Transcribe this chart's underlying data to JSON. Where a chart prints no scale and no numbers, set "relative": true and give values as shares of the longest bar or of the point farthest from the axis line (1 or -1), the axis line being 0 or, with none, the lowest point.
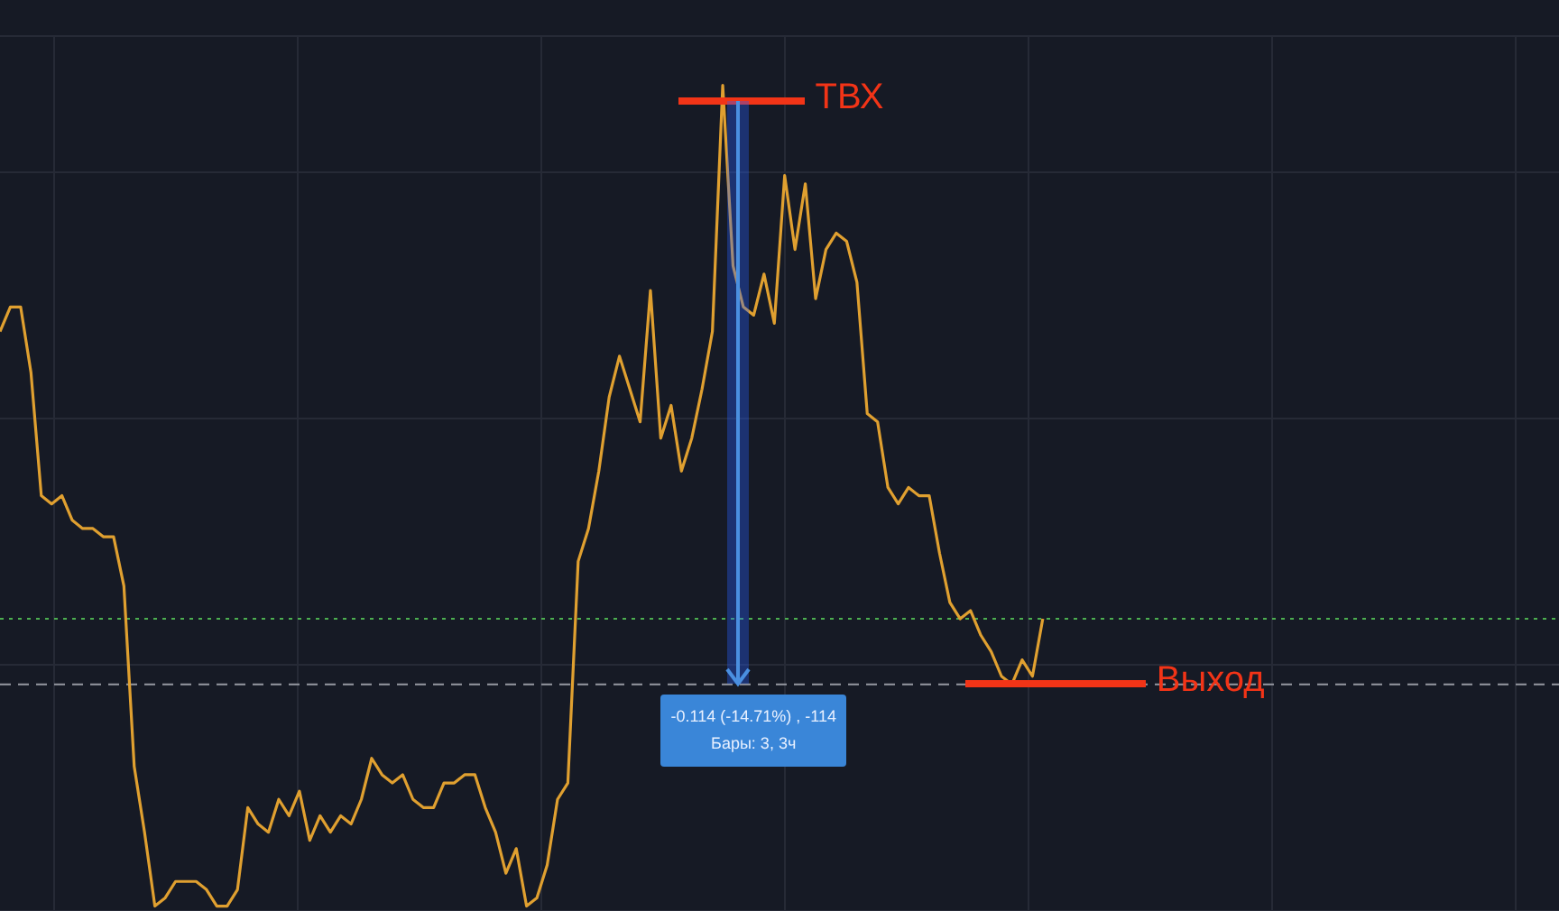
{
  "chart_data": {
    "type": "line",
    "relative": true,
    "grid": true,
    "marker": "none",
    "line_style": "solid",
    "categories": [
      null,
      null,
      null,
      null,
      null,
      null,
      null,
      null,
      null,
      null,
      null,
      null,
      null,
      null,
      null,
      null,
      null,
      null,
      null,
      null,
      null,
      null,
      null,
      null,
      null,
      null,
      null,
      null,
      null,
      null,
      null,
      null,
      null,
      null,
      null,
      null,
      null,
      null,
      null,
      null,
      null,
      null,
      null,
      null,
      null,
      null,
      null,
      null,
      null,
      null,
      null,
      null,
      null,
      null,
      null,
      null,
      null,
      null,
      null,
      null,
      null,
      null,
      null,
      null,
      null,
      null,
      null,
      null,
      null,
      null,
      null,
      null,
      null,
      null,
      null,
      null,
      null,
      null,
      null,
      null,
      null,
      null,
      null,
      null,
      null,
      null,
      null,
      null,
      null,
      null,
      null,
      null,
      null,
      null,
      null,
      null,
      null,
      null,
      null,
      null,
      null,
      null,
      null,
      null,
      null,
      null,
      null,
      null,
      null,
      null,
      null,
      null,
      null,
      null,
      null,
      null,
      null,
      null,
      null,
      null,
      null,
      null,
      null,
      null,
      null,
      null,
      null,
      null,
      null,
      null,
      null,
      null,
      null,
      null,
      null,
      null,
      null,
      null,
      null,
      null,
      null,
      null,
      null,
      null,
      null,
      null,
      null,
      null,
      null,
      null,
      null,
      null
    ],
    "series": [
      {
        "color": "#e0a030",
        "values": [
          0.7,
          0.73,
          0.73,
          0.65,
          0.5,
          0.49,
          0.5,
          0.47,
          0.46,
          0.46,
          0.45,
          0.45,
          0.39,
          0.17,
          0.09,
          0,
          0.01,
          0.03,
          0.03,
          0.03,
          0.02,
          0,
          0,
          0.02,
          0.12,
          0.1,
          0.09,
          0.13,
          0.11,
          0.14,
          0.08,
          0.11,
          0.09,
          0.11,
          0.1,
          0.13,
          0.18,
          0.16,
          0.15,
          0.16,
          0.13,
          0.12,
          0.12,
          0.15,
          0.15,
          0.16,
          0.16,
          0.12,
          0.09,
          0.04,
          0.07,
          0,
          0.01,
          0.05,
          0.13,
          0.15,
          0.42,
          0.46,
          0.53,
          0.62,
          0.67,
          0.63,
          0.59,
          0.75,
          0.57,
          0.61,
          0.53,
          0.57,
          0.63,
          0.7,
          1,
          0.78,
          0.73,
          0.72,
          0.77,
          0.71,
          0.89,
          0.8,
          0.88,
          0.74,
          0.8,
          0.82,
          0.81,
          0.76,
          0.6,
          0.59,
          0.51,
          0.49,
          0.51,
          0.5,
          0.5,
          0.43,
          0.37,
          0.35,
          0.36,
          0.33,
          0.31,
          0.28,
          0.27,
          0.3,
          0.28,
          0.35,
          null,
          null,
          null,
          null,
          null,
          null,
          null,
          null,
          null,
          null,
          null,
          null,
          null,
          null,
          null,
          null,
          null,
          null,
          null,
          null,
          null,
          null,
          null,
          null,
          null,
          null,
          null,
          null,
          null,
          null,
          null,
          null,
          null,
          null,
          null,
          null,
          null,
          null,
          null,
          null,
          null,
          null,
          null,
          null,
          null,
          null,
          null,
          null,
          null,
          null
        ]
      }
    ],
    "ref_lines": [
      {
        "axis": "y",
        "value": 0.35,
        "color": "#4caf50",
        "line_style": "dotted"
      },
      {
        "axis": "y",
        "value": 0.27,
        "color": "#9598a1",
        "line_style": "dashed"
      },
      {
        "axis": "y",
        "value": 0.98,
        "label": "ТВХ",
        "color": "#f23417"
      },
      {
        "axis": "y",
        "value": 0.27,
        "label": "Выход",
        "color": "#f23417"
      }
    ],
    "annotations": [
      "-0.114 (-14.71%) , -114",
      "Бары: 3, 3ч"
    ]
  }
}
